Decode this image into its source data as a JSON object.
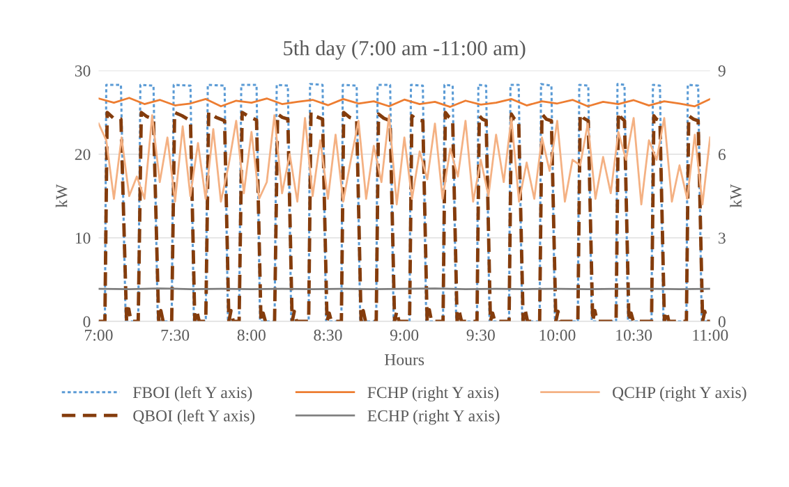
{
  "chart_data": {
    "type": "line",
    "title": "5th day (7:00 am -11:00 am)",
    "xlabel": "Hours",
    "ylabel": "kW",
    "y2label": "kW",
    "xlim": [
      7,
      11
    ],
    "xticks": [
      {
        "value": 7,
        "label": "7:00"
      },
      {
        "value": 7.5,
        "label": "7:30"
      },
      {
        "value": 8,
        "label": "8:00"
      },
      {
        "value": 8.5,
        "label": "8:30"
      },
      {
        "value": 9,
        "label": "9:00"
      },
      {
        "value": 9.5,
        "label": "9:30"
      },
      {
        "value": 10,
        "label": "10:00"
      },
      {
        "value": 10.5,
        "label": "10:30"
      },
      {
        "value": 11,
        "label": "11:00"
      }
    ],
    "ylim": [
      0,
      30
    ],
    "yticks": [
      0,
      10,
      20,
      30
    ],
    "y2lim": [
      0,
      9
    ],
    "y2ticks": [
      0,
      3,
      6,
      9
    ],
    "grid": "y",
    "legend": "bottom",
    "marker": "none",
    "series": [
      {
        "name": "FBOI (left Y axis)",
        "color": "#5b9bd5",
        "line_style": "dotted",
        "axis": "y",
        "x": [
          7.0,
          7.041,
          7.05,
          7.146,
          7.177,
          7.259,
          7.273,
          7.359,
          7.387,
          7.478,
          7.491,
          7.601,
          7.623,
          7.701,
          7.714,
          7.824,
          7.846,
          7.919,
          7.933,
          8.033,
          8.056,
          8.151,
          8.165,
          8.238,
          8.26,
          8.374,
          8.383,
          8.465,
          8.488,
          8.588,
          8.597,
          8.688,
          8.711,
          8.816,
          8.825,
          8.907,
          8.93,
          9.034,
          9.043,
          9.121,
          9.143,
          9.253,
          9.262,
          9.316,
          9.339,
          9.475,
          9.484,
          9.535,
          9.557,
          9.685,
          9.694,
          9.748,
          9.771,
          9.885,
          9.894,
          9.962,
          9.985,
          10.135,
          10.144,
          10.203,
          10.226,
          10.385,
          10.394,
          10.44,
          10.463,
          10.617,
          10.626,
          10.672,
          10.695,
          10.845,
          10.854,
          10.922,
          10.945,
          11.0
        ],
        "values": [
          0,
          0,
          28.3,
          28.3,
          0,
          0,
          28.3,
          28.2,
          0,
          0,
          28.3,
          28.2,
          0,
          0,
          28.3,
          28.2,
          0,
          0,
          28.3,
          28.3,
          0,
          0,
          28.3,
          28.2,
          0,
          0,
          28.4,
          28.3,
          0,
          0,
          28.3,
          28.2,
          0,
          0,
          28.3,
          28.3,
          0,
          0,
          28.3,
          28.2,
          0,
          0,
          28.3,
          28.2,
          0,
          0,
          28.3,
          28.2,
          0,
          0,
          28.3,
          28.3,
          0,
          0,
          28.4,
          28.2,
          0,
          0,
          28.3,
          28.2,
          0,
          0,
          28.4,
          28.3,
          0,
          0,
          28.3,
          28.2,
          0,
          0,
          28.3,
          28.2,
          0,
          0
        ]
      },
      {
        "name": "QBOI (left Y axis)",
        "color": "#843c0c",
        "line_style": "dashed",
        "axis": "y",
        "x": [
          7.0,
          7.041,
          7.056,
          7.098,
          7.146,
          7.183,
          7.197,
          7.212,
          7.259,
          7.279,
          7.316,
          7.359,
          7.393,
          7.407,
          7.422,
          7.478,
          7.497,
          7.546,
          7.601,
          7.629,
          7.643,
          7.658,
          7.701,
          7.72,
          7.769,
          7.824,
          7.852,
          7.866,
          7.881,
          7.919,
          7.939,
          7.983,
          8.033,
          8.062,
          8.076,
          8.091,
          8.151,
          8.171,
          8.202,
          8.238,
          8.266,
          8.28,
          8.295,
          8.374,
          8.389,
          8.424,
          8.465,
          8.494,
          8.508,
          8.523,
          8.588,
          8.603,
          8.643,
          8.688,
          8.717,
          8.731,
          8.746,
          8.816,
          8.831,
          8.866,
          8.907,
          8.936,
          8.95,
          8.965,
          9.034,
          9.049,
          9.082,
          9.121,
          9.149,
          9.163,
          9.178,
          9.253,
          9.268,
          9.289,
          9.316,
          9.345,
          9.359,
          9.374,
          9.475,
          9.49,
          9.51,
          9.535,
          9.563,
          9.577,
          9.592,
          9.685,
          9.7,
          9.721,
          9.748,
          9.777,
          9.791,
          9.806,
          9.885,
          9.9,
          9.928,
          9.962,
          9.991,
          10.005,
          10.02,
          10.135,
          10.15,
          10.174,
          10.203,
          10.232,
          10.246,
          10.261,
          10.385,
          10.4,
          10.417,
          10.44,
          10.469,
          10.483,
          10.498,
          10.617,
          10.632,
          10.649,
          10.672,
          10.701,
          10.715,
          10.73,
          10.845,
          10.86,
          10.891,
          10.922,
          10.951,
          10.965,
          10.98,
          11.0
        ],
        "values": [
          0,
          0,
          25,
          24.3,
          24.2,
          0,
          1.5,
          0,
          0,
          25,
          24.5,
          24.2,
          0,
          1.3,
          0,
          0,
          25,
          24.6,
          24,
          0,
          1.2,
          0,
          0,
          25,
          24.4,
          24,
          0,
          1.3,
          0,
          0,
          25,
          24.5,
          24.1,
          0,
          1.0,
          0,
          0,
          24.8,
          24.4,
          24.2,
          0,
          1.2,
          0,
          0,
          25,
          24.5,
          24.2,
          0,
          1.0,
          0,
          0,
          25,
          24.4,
          24.1,
          0,
          1.3,
          0,
          0,
          24.8,
          24.3,
          24,
          0,
          1.2,
          0,
          0,
          24.6,
          24.1,
          24,
          0,
          1.4,
          0,
          0,
          25,
          24.5,
          24.1,
          0,
          1.2,
          0,
          0,
          24.6,
          24.2,
          24,
          0,
          1.0,
          0,
          0,
          24.8,
          24.2,
          24,
          0,
          1.3,
          0,
          0,
          24.8,
          24.2,
          24,
          0,
          1.2,
          0,
          0,
          24.8,
          24.3,
          24,
          0,
          1.3,
          0,
          0,
          25,
          24.4,
          24,
          0,
          1.0,
          0,
          0,
          24.6,
          24.2,
          24,
          0,
          1.2,
          0,
          0,
          24.6,
          24.2,
          24,
          0,
          1.2,
          0,
          0
        ]
      },
      {
        "name": "FCHP (right Y axis)",
        "color": "#ed7d31",
        "line_style": "solid",
        "axis": "y2",
        "x": [
          7.0,
          7.1,
          7.2,
          7.3,
          7.4,
          7.5,
          7.6,
          7.7,
          7.8,
          7.9,
          8.0,
          8.1,
          8.2,
          8.3,
          8.4,
          8.5,
          8.6,
          8.7,
          8.8,
          8.9,
          9.0,
          9.1,
          9.2,
          9.3,
          9.4,
          9.5,
          9.6,
          9.7,
          9.8,
          9.9,
          10.0,
          10.1,
          10.2,
          10.3,
          10.4,
          10.5,
          10.6,
          10.7,
          10.8,
          10.9,
          11.0
        ],
        "values": [
          8.0,
          7.85,
          8.02,
          7.8,
          7.95,
          7.75,
          7.82,
          7.98,
          7.72,
          7.92,
          7.85,
          8.0,
          7.8,
          7.88,
          7.95,
          7.76,
          7.98,
          7.82,
          7.9,
          7.72,
          7.96,
          7.8,
          7.88,
          7.7,
          7.92,
          7.78,
          7.85,
          7.98,
          7.75,
          7.9,
          7.82,
          7.95,
          7.72,
          7.88,
          7.8,
          7.94,
          7.75,
          7.9,
          7.82,
          7.72,
          7.98
        ]
      },
      {
        "name": "ECHP (right Y axis)",
        "color": "#7f7f7f",
        "line_style": "solid",
        "axis": "y2",
        "x": [
          7.0,
          7.2,
          7.4,
          7.6,
          7.8,
          8.0,
          8.2,
          8.4,
          8.6,
          8.8,
          9.0,
          9.2,
          9.4,
          9.6,
          9.8,
          10.0,
          10.2,
          10.4,
          10.6,
          10.8,
          11.0
        ],
        "values": [
          1.17,
          1.16,
          1.18,
          1.16,
          1.17,
          1.16,
          1.17,
          1.16,
          1.17,
          1.16,
          1.17,
          1.18,
          1.16,
          1.17,
          1.16,
          1.17,
          1.16,
          1.17,
          1.17,
          1.16,
          1.17
        ]
      },
      {
        "name": "QCHP (right Y axis)",
        "color": "#f4b183",
        "line_style": "solid",
        "axis": "y2",
        "x": [
          7.0,
          7.05,
          7.1,
          7.15,
          7.2,
          7.25,
          7.3,
          7.35,
          7.4,
          7.45,
          7.5,
          7.55,
          7.6,
          7.65,
          7.7,
          7.75,
          7.8,
          7.85,
          7.9,
          7.95,
          8.0,
          8.05,
          8.1,
          8.15,
          8.2,
          8.25,
          8.3,
          8.35,
          8.4,
          8.45,
          8.5,
          8.55,
          8.6,
          8.65,
          8.7,
          8.75,
          8.8,
          8.85,
          8.9,
          8.95,
          9.0,
          9.05,
          9.1,
          9.15,
          9.2,
          9.25,
          9.3,
          9.35,
          9.4,
          9.45,
          9.5,
          9.55,
          9.6,
          9.65,
          9.7,
          9.75,
          9.8,
          9.85,
          9.9,
          9.95,
          10.0,
          10.05,
          10.1,
          10.15,
          10.2,
          10.25,
          10.3,
          10.35,
          10.4,
          10.45,
          10.5,
          10.55,
          10.6,
          10.65,
          10.7,
          10.75,
          10.8,
          10.85,
          10.9,
          10.95,
          11.0
        ],
        "values": [
          7.1,
          6.5,
          4.4,
          6.6,
          4.5,
          5.2,
          4.4,
          7.4,
          5.0,
          6.6,
          4.3,
          7.0,
          4.5,
          6.4,
          4.4,
          6.9,
          4.3,
          5.6,
          7.2,
          4.6,
          6.8,
          4.4,
          5.0,
          7.4,
          4.6,
          6.0,
          4.3,
          7.3,
          4.5,
          6.5,
          4.4,
          6.7,
          4.3,
          5.8,
          7.2,
          4.4,
          6.3,
          5.0,
          7.4,
          4.2,
          6.6,
          4.4,
          6.1,
          5.1,
          7.1,
          4.4,
          6.2,
          5.2,
          7.2,
          4.3,
          5.8,
          4.5,
          6.7,
          5.0,
          7.3,
          4.3,
          5.7,
          4.4,
          6.6,
          5.4,
          7.2,
          4.3,
          5.8,
          5.6,
          7.1,
          4.4,
          5.9,
          4.6,
          6.8,
          5.8,
          7.3,
          4.2,
          6.5,
          5.8,
          7.3,
          4.3,
          5.6,
          4.4,
          6.7,
          4.2,
          6.6
        ]
      }
    ]
  }
}
